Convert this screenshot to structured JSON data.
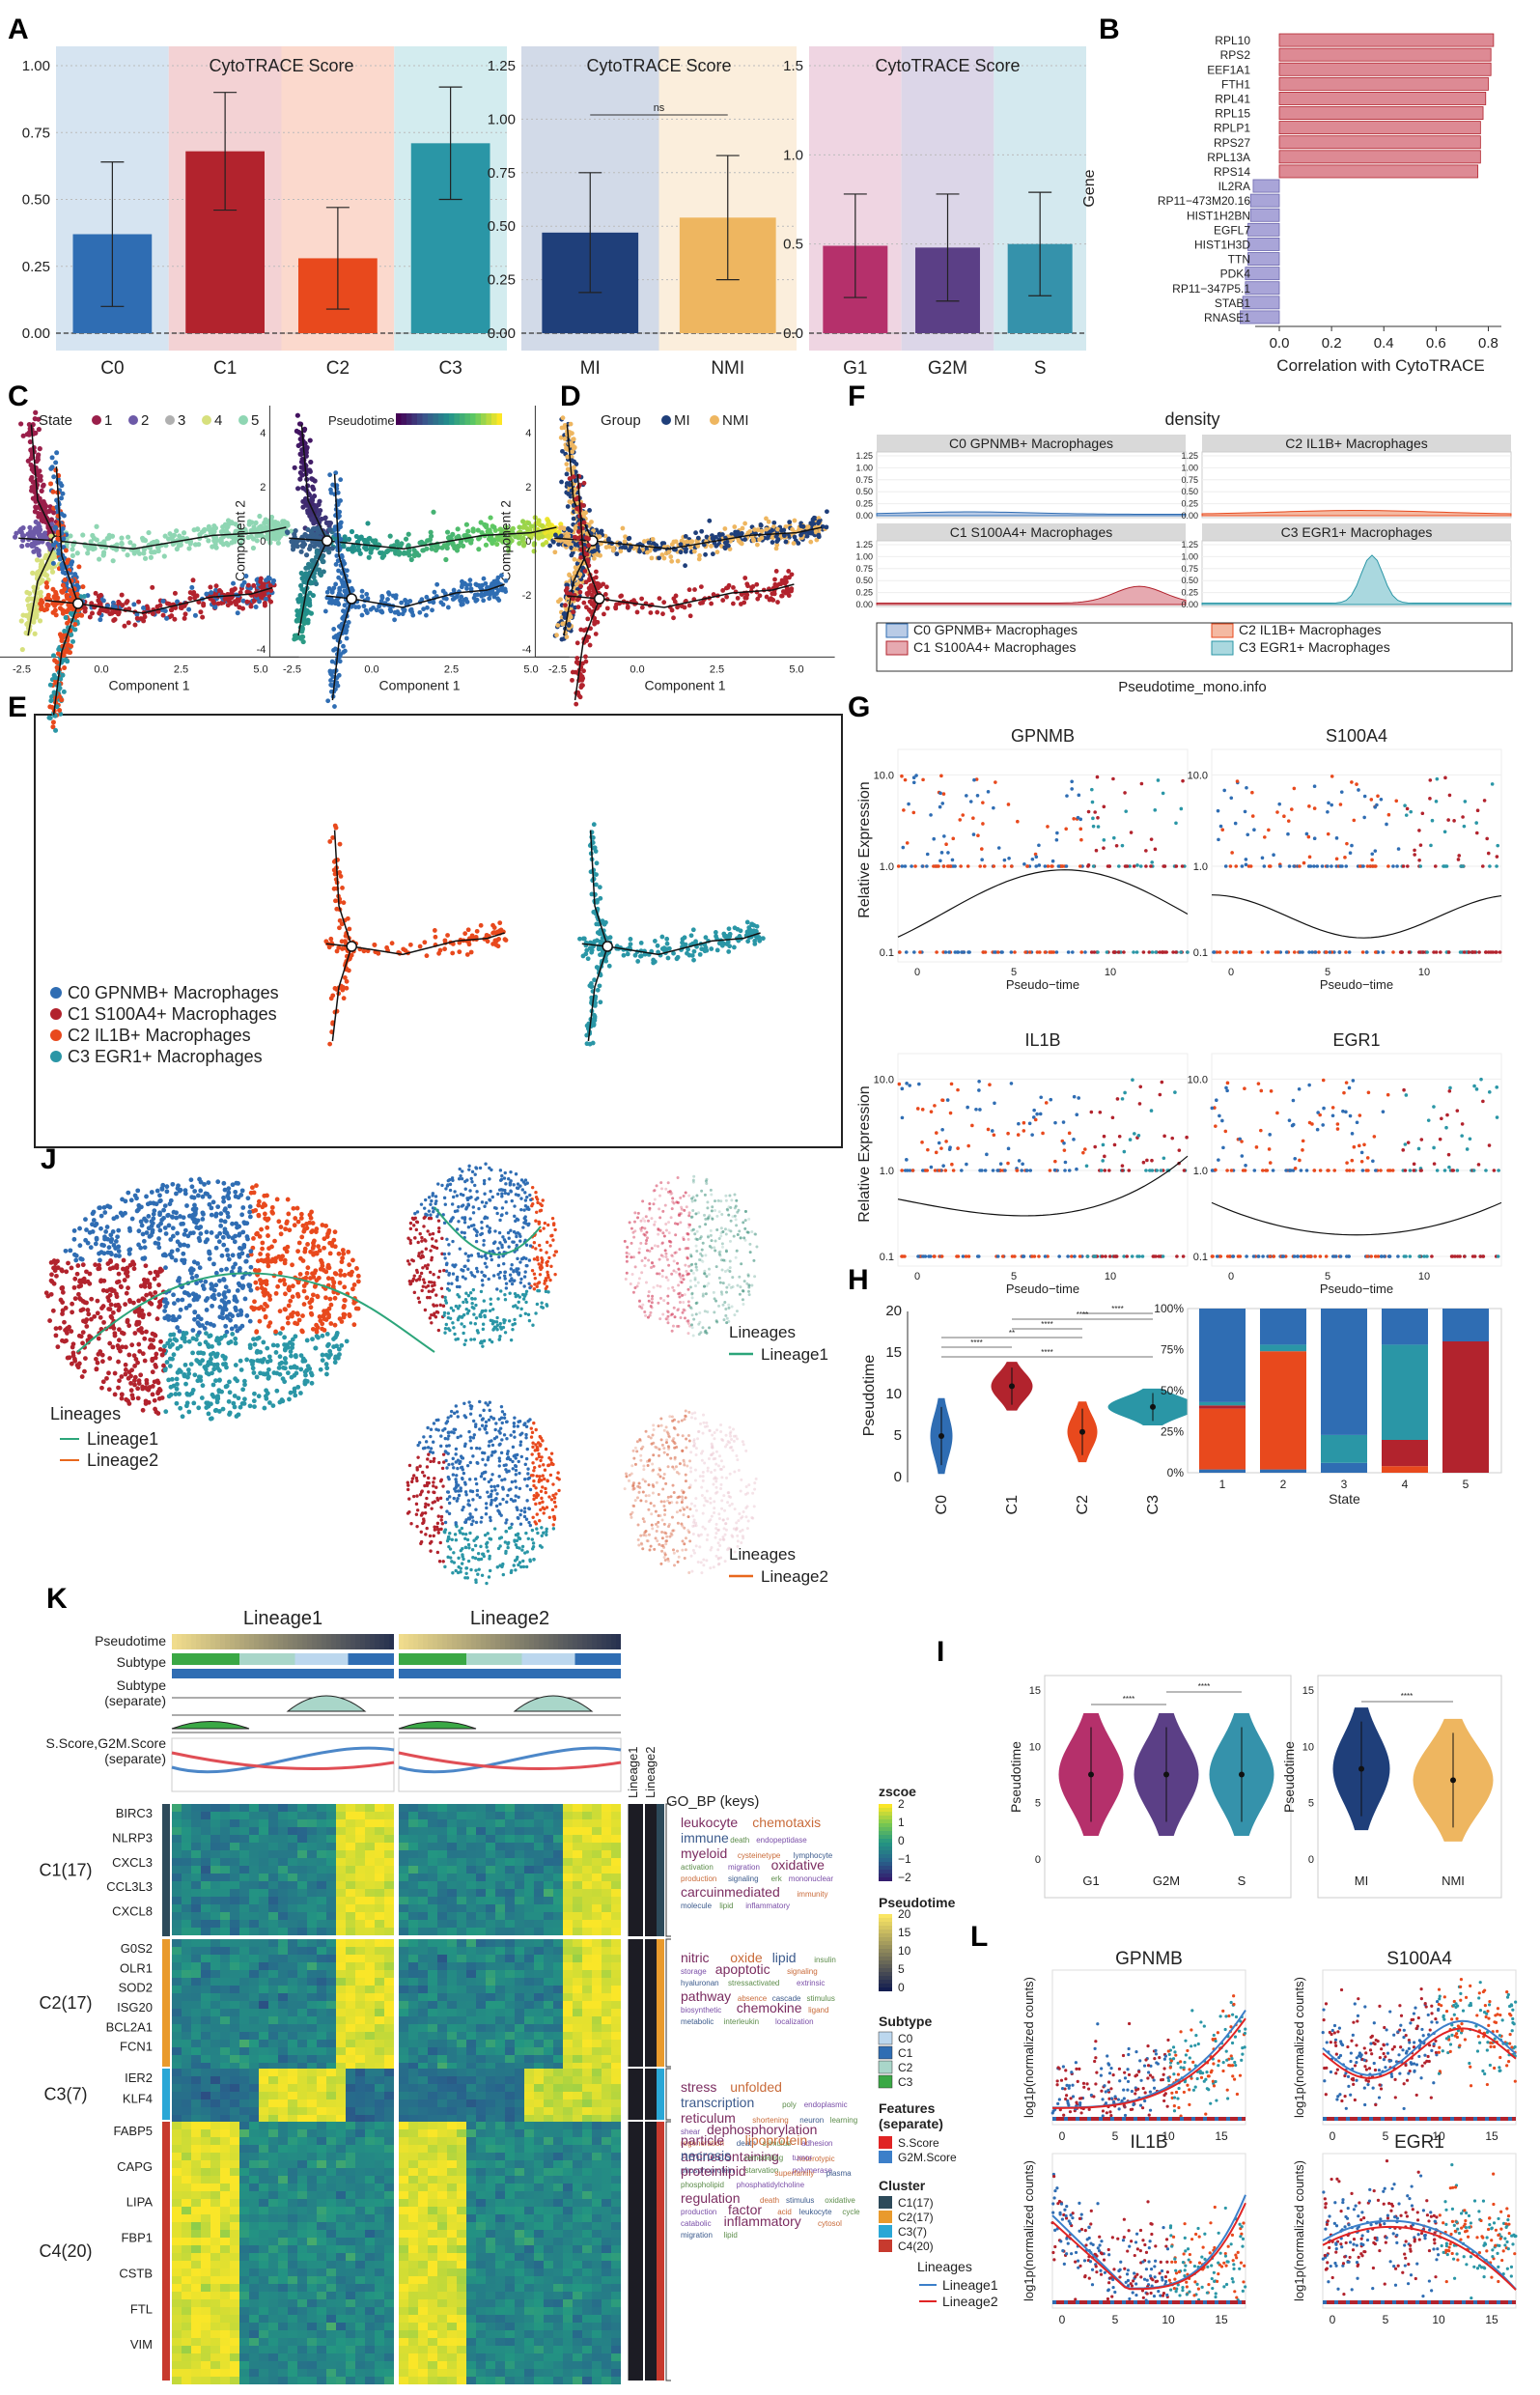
{
  "panel_letters": [
    "A",
    "B",
    "C",
    "D",
    "E",
    "F",
    "G",
    "H",
    "I",
    "J",
    "K",
    "L"
  ],
  "chart_data": [
    {
      "panel": "A1",
      "type": "bar",
      "title": "CytoTRACE Score",
      "categories": [
        "C0",
        "C1",
        "C2",
        "C3"
      ],
      "values": [
        0.37,
        0.68,
        0.28,
        0.71
      ],
      "errors": [
        0.27,
        0.22,
        0.19,
        0.21
      ],
      "ylim": [
        0,
        1.0
      ],
      "yticks": [
        "0.00",
        "0.25",
        "0.50",
        "0.75",
        "1.00"
      ],
      "colors": [
        "#2f6db3",
        "#b2232d",
        "#e8491d",
        "#2a96a6"
      ],
      "bg": [
        "#d6e4f1",
        "#f3d2d4",
        "#fbd9cd",
        "#d3ecef"
      ]
    },
    {
      "panel": "A2",
      "type": "bar",
      "title": "CytoTRACE Score",
      "categories": [
        "MI",
        "NMI"
      ],
      "values": [
        0.47,
        0.54
      ],
      "errors": [
        0.28,
        0.29
      ],
      "ylim": [
        0,
        1.25
      ],
      "yticks": [
        "0.00",
        "0.25",
        "0.50",
        "0.75",
        "1.00",
        "1.25"
      ],
      "significance": "ns",
      "colors": [
        "#1f3f7a",
        "#eeb660"
      ],
      "bg": [
        "#d2dae8",
        "#fbeedc"
      ]
    },
    {
      "panel": "A3",
      "type": "bar",
      "title": "CytoTRACE Score",
      "categories": [
        "G1",
        "G2M",
        "S"
      ],
      "values": [
        0.49,
        0.48,
        0.5
      ],
      "errors": [
        0.29,
        0.3,
        0.29
      ],
      "ylim": [
        0,
        1.5
      ],
      "yticks": [
        "0.0",
        "0.5",
        "1.0",
        "1.5"
      ],
      "colors": [
        "#b5306b",
        "#5b3f86",
        "#3592ab"
      ],
      "bg": [
        "#efd5e2",
        "#dcd6e8",
        "#d4e9ef"
      ]
    },
    {
      "panel": "B",
      "type": "bar",
      "orientation": "horizontal",
      "ylabel": "Gene",
      "xlabel": "Correlation with CytoTRACE",
      "xticks": [
        "0.0",
        "0.2",
        "0.4",
        "0.6",
        "0.8"
      ],
      "categories": [
        "RPL10",
        "RPS2",
        "EEF1A1",
        "FTH1",
        "RPL41",
        "RPL15",
        "RPLP1",
        "RPS27",
        "RPL13A",
        "RPS14",
        "IL2RA",
        "RP11−473M20.16",
        "HIST1H2BN",
        "EGFL7",
        "HIST1H3D",
        "TTN",
        "PDK4",
        "RP11−347P5.1",
        "STAB1",
        "RNASE1"
      ],
      "values": [
        0.82,
        0.81,
        0.81,
        0.8,
        0.79,
        0.78,
        0.77,
        0.77,
        0.77,
        0.76,
        -0.1,
        -0.11,
        -0.11,
        -0.12,
        -0.12,
        -0.12,
        -0.13,
        -0.13,
        -0.14,
        -0.15
      ]
    },
    {
      "panel": "C",
      "type": "scatter",
      "title": "",
      "xlabel": "Component 1",
      "ylabel": "Component 2",
      "legend_title": "State",
      "legend": [
        "1",
        "2",
        "3",
        "4",
        "5"
      ],
      "colorbar_title": "Pseudotime",
      "xticks": [
        "-2.5",
        "0.0",
        "2.5",
        "5.0"
      ],
      "yticks": [
        "-4",
        "-2",
        "0",
        "2",
        "4"
      ]
    },
    {
      "panel": "D",
      "type": "scatter",
      "xlabel": "Component 1",
      "ylabel": "Component 2",
      "legend_title": "Group",
      "legend": [
        "MI",
        "NMI"
      ]
    },
    {
      "panel": "E",
      "type": "scatter",
      "legend": [
        "C0 GPNMB+ Macrophages",
        "C1 S100A4+ Macrophages",
        "C2 IL1B+ Macrophages",
        "C3 EGR1+ Macrophages"
      ]
    },
    {
      "panel": "F",
      "type": "area",
      "title": "density",
      "xlabel": "Pseudotime_mono.info",
      "facets": [
        "C0 GPNMB+ Macrophages",
        "C2 IL1B+ Macrophages",
        "C1 S100A4+ Macrophages",
        "C3 EGR1+ Macrophages"
      ],
      "yticks": [
        "0.00",
        "0.25",
        "0.50",
        "0.75",
        "1.00",
        "1.25"
      ],
      "legend": [
        "C0 GPNMB+ Macrophages",
        "C2 IL1B+ Macrophages",
        "C1 S100A4+ Macrophages",
        "C3 EGR1+ Macrophages"
      ]
    },
    {
      "panel": "G",
      "type": "scatter",
      "ylabel": "Relative Expression",
      "xlabel": "Pseudo−time",
      "genes": [
        "GPNMB",
        "S100A4",
        "IL1B",
        "EGR1"
      ],
      "yticks": [
        "0.1",
        "1.0",
        "10.0"
      ],
      "xticks": [
        "0",
        "5",
        "10"
      ]
    },
    {
      "panel": "H1",
      "type": "violin",
      "ylabel": "Pseudotime",
      "categories": [
        "C0",
        "C1",
        "C2",
        "C3"
      ],
      "yticks": [
        "0",
        "5",
        "10",
        "15",
        "20"
      ],
      "significance": [
        "****",
        "**",
        "****",
        "****",
        "****",
        "****"
      ]
    },
    {
      "panel": "H2",
      "type": "bar",
      "stacked": true,
      "xlabel": "State",
      "categories": [
        "1",
        "2",
        "3",
        "4",
        "5"
      ],
      "yticks": [
        "0%",
        "25%",
        "50%",
        "75%",
        "100%"
      ],
      "series": [
        {
          "values": [
            0.02,
            0.02,
            0.06,
            0.0,
            0.0
          ]
        },
        {
          "values": [
            0.37,
            0.72,
            0.0,
            0.04,
            0.0
          ]
        },
        {
          "values": [
            0.02,
            0.0,
            0.0,
            0.16,
            0.8
          ]
        },
        {
          "values": [
            0.02,
            0.04,
            0.17,
            0.58,
            0.0
          ]
        },
        {
          "values": [
            0.57,
            0.22,
            0.77,
            0.22,
            0.2
          ]
        }
      ]
    },
    {
      "panel": "I1",
      "type": "violin",
      "ylabel": "Pseudotime",
      "categories": [
        "G1",
        "G2M",
        "S"
      ],
      "yticks": [
        "0",
        "5",
        "10",
        "15"
      ],
      "significance": [
        "****",
        "****"
      ]
    },
    {
      "panel": "I2",
      "type": "violin",
      "ylabel": "Pseudotime",
      "categories": [
        "MI",
        "NMI"
      ],
      "yticks": [
        "0",
        "5",
        "10",
        "15"
      ],
      "significance": [
        "****"
      ]
    },
    {
      "panel": "J",
      "type": "scatter",
      "legend_title": "Lineages",
      "legend": [
        "Lineage1",
        "Lineage2"
      ],
      "lineage1_label": "Lineage1",
      "lineage2_label": "Lineage2"
    },
    {
      "panel": "K",
      "type": "heatmap",
      "columns": [
        "Lineage1",
        "Lineage2"
      ],
      "row_annotations": [
        "Pseudotime",
        "Subtype",
        "Subtype\n(separate)",
        "S.Score,G2M.Score\n(separate)"
      ],
      "side_labels": [
        "Lineage1",
        "Lineage2"
      ],
      "go_title": "GO_BP (keys)",
      "clusters": [
        {
          "name": "C1(17)",
          "genes": [
            "BIRC3",
            "NLRP3",
            "CXCL3",
            "CCL3L3",
            "CXCL8"
          ],
          "keywords": [
            "leukocyte",
            "chemotaxis",
            "immune",
            "death",
            "endopeptidase",
            "myeloid",
            "cysteinetype",
            "lymphocyte",
            "activation",
            "migration",
            "oxidative",
            "production",
            "signaling",
            "erk",
            "mononuclear",
            "carcuinmediated",
            "immunity",
            "molecule",
            "lipid",
            "inflammatory"
          ]
        },
        {
          "name": "C2(17)",
          "genes": [
            "G0S2",
            "OLR1",
            "SOD2",
            "ISG20",
            "BCL2A1",
            "FCN1"
          ],
          "keywords": [
            "nitric",
            "oxide",
            "lipid",
            "insulin",
            "storage",
            "apoptotic",
            "signaling",
            "hyaluronan",
            "stressactivated",
            "extrinsic",
            "pathway",
            "absence",
            "cascade",
            "stimulus",
            "biosynthetic",
            "chemokine",
            "ligand",
            "metabolic",
            "interleukin",
            "localization"
          ]
        },
        {
          "name": "C3(7)",
          "genes": [
            "IER2",
            "KLF4"
          ],
          "keywords": [
            "stress",
            "unfolded",
            "transcription",
            "poly",
            "endoplasmic",
            "reticulum",
            "shortening",
            "neuron",
            "learning",
            "shear",
            "dephosphorylation",
            "regeneration",
            "death",
            "stimulus",
            "adhesion",
            "aminecontaining",
            "heterotypic",
            "phosphoprotein",
            "starvation",
            "polymerase"
          ]
        },
        {
          "name": "C4(20)",
          "genes": [
            "FABP5",
            "CAPG",
            "LIPA",
            "FBP1",
            "CSTB",
            "FTL",
            "VIM"
          ],
          "keywords": [
            "particle",
            "lipoprotein",
            "necrosis",
            "remodeling",
            "tumor",
            "proteinlipid",
            "superfamily",
            "plasma",
            "phospholipid",
            "phosphatidylcholine",
            "regulation",
            "death",
            "stimulus",
            "oxidative",
            "production",
            "factor",
            "acid",
            "leukocyte",
            "cycle",
            "catabolic",
            "inflammatory",
            "cytosol",
            "migration",
            "lipid"
          ]
        }
      ],
      "legend_zscore_title": "zscoe",
      "zscore_ticks": [
        "2",
        "1",
        "0",
        "−1",
        "−2"
      ],
      "legend_pseudotime_title": "Pseudotime",
      "pseudotime_ticks": [
        "20",
        "15",
        "10",
        "5",
        "0"
      ],
      "legend_subtype_title": "Subtype",
      "subtypes": [
        "C0",
        "C1",
        "C2",
        "C3"
      ],
      "legend_features_title": "Features\n(separate)",
      "features": [
        "S.Score",
        "G2M.Score"
      ],
      "legend_cluster_title": "Cluster",
      "cluster_names": [
        "C1(17)",
        "C2(17)",
        "C3(7)",
        "C4(20)"
      ],
      "legend_lineages_title": "Lineages",
      "lineages": [
        "Lineage1",
        "Lineage2"
      ]
    },
    {
      "panel": "L",
      "type": "scatter",
      "ylabel": "log1p(normalized counts)",
      "genes": [
        "GPNMB",
        "S100A4",
        "IL1B",
        "EGR1"
      ],
      "xticks": [
        "0",
        "5",
        "10",
        "15"
      ]
    }
  ],
  "colors": {
    "c0": "#2f6db3",
    "c1": "#b2232d",
    "c2": "#e8491d",
    "c3": "#2a96a6",
    "mi": "#1f3f7a",
    "nmi": "#eeb660",
    "lineage1": "#2ca57a",
    "lineage2": "#e8671d"
  }
}
